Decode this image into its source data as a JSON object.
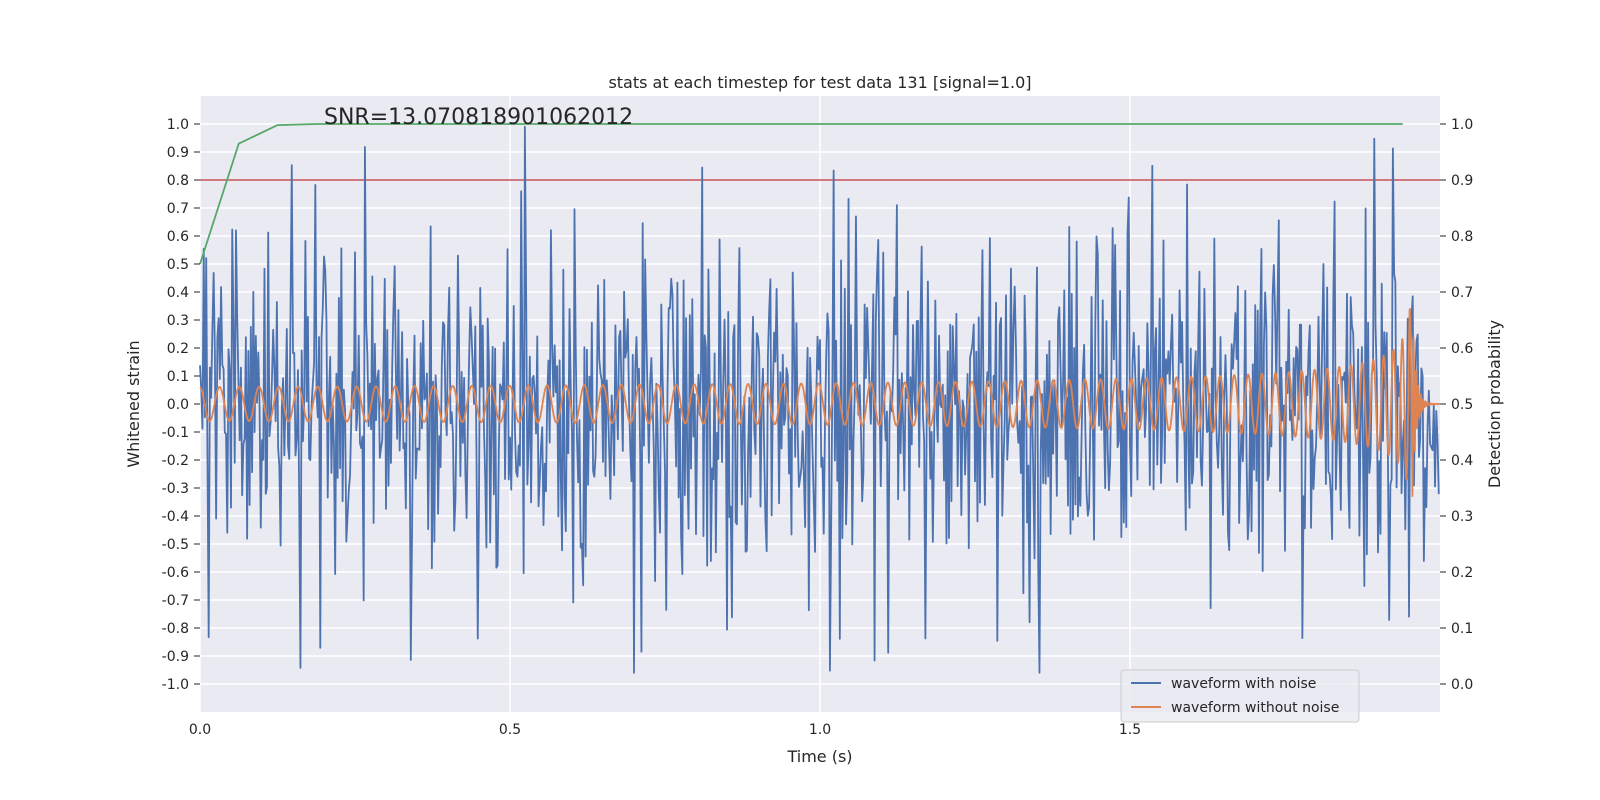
{
  "chart_data": {
    "type": "line",
    "title": "stats at each timestep for test data 131 [signal=1.0]",
    "xlabel": "Time (s)",
    "ylabel": "Whitened strain",
    "ylabel_right": "Detection probability",
    "annotation": "SNR=13.070818901062012",
    "xlim": [
      0.0,
      2.0
    ],
    "ylim": [
      -1.1,
      1.1
    ],
    "ylim_right": [
      -0.05,
      1.05
    ],
    "x_ticks": [
      {
        "value": 0.0,
        "label": "0.0"
      },
      {
        "value": 0.5,
        "label": "0.5"
      },
      {
        "value": 1.0,
        "label": "1.0"
      },
      {
        "value": 1.5,
        "label": "1.5"
      }
    ],
    "y_ticks": [
      {
        "value": 1.0,
        "label": "1.0"
      },
      {
        "value": 0.9,
        "label": "0.9"
      },
      {
        "value": 0.8,
        "label": "0.8"
      },
      {
        "value": 0.7,
        "label": "0.7"
      },
      {
        "value": 0.6,
        "label": "0.6"
      },
      {
        "value": 0.5,
        "label": "0.5"
      },
      {
        "value": 0.4,
        "label": "0.4"
      },
      {
        "value": 0.3,
        "label": "0.3"
      },
      {
        "value": 0.2,
        "label": "0.2"
      },
      {
        "value": 0.1,
        "label": "0.1"
      },
      {
        "value": 0.0,
        "label": "0.0"
      },
      {
        "value": -0.1,
        "label": "-0.1"
      },
      {
        "value": -0.2,
        "label": "-0.2"
      },
      {
        "value": -0.3,
        "label": "-0.3"
      },
      {
        "value": -0.4,
        "label": "-0.4"
      },
      {
        "value": -0.5,
        "label": "-0.5"
      },
      {
        "value": -0.6,
        "label": "-0.6"
      },
      {
        "value": -0.7,
        "label": "-0.7"
      },
      {
        "value": -0.8,
        "label": "-0.8"
      },
      {
        "value": -0.9,
        "label": "-0.9"
      },
      {
        "value": -1.0,
        "label": "-1.0"
      }
    ],
    "y_ticks_right": [
      {
        "value": 1.0,
        "label": "1.0"
      },
      {
        "value": 0.9,
        "label": "0.9"
      },
      {
        "value": 0.8,
        "label": "0.8"
      },
      {
        "value": 0.7,
        "label": "0.7"
      },
      {
        "value": 0.6,
        "label": "0.6"
      },
      {
        "value": 0.5,
        "label": "0.5"
      },
      {
        "value": 0.4,
        "label": "0.4"
      },
      {
        "value": 0.3,
        "label": "0.3"
      },
      {
        "value": 0.2,
        "label": "0.2"
      },
      {
        "value": 0.1,
        "label": "0.1"
      },
      {
        "value": 0.0,
        "label": "0.0"
      }
    ],
    "threshold": {
      "axis": "right",
      "value": 0.9,
      "color": "#c44e52"
    },
    "detection_probability": {
      "axis": "right",
      "color": "#55a868",
      "x": [
        0.0,
        0.0625,
        0.125,
        0.1875,
        0.25,
        0.5,
        1.0,
        1.5,
        1.94
      ],
      "y": [
        0.75,
        0.965,
        0.998,
        1.0,
        1.0,
        1.0,
        1.0,
        1.0,
        1.0
      ]
    },
    "series": [
      {
        "name": "waveform with noise",
        "color": "#4c72b0",
        "model": "random noise, std ~0.32, samples every 0.002 s, range approx -0.96 to 0.99"
      },
      {
        "name": "waveform without noise",
        "color": "#dd8452",
        "model": "chirp: amplitude 0.06 rising to ~0.35 near merger at t=1.955 s, frequency ~37 Hz rising, ringdown to 0 after t=1.96 s"
      }
    ],
    "legend": {
      "location": "lower right",
      "entries": [
        {
          "label": "waveform with noise",
          "color": "#4c72b0"
        },
        {
          "label": "waveform without noise",
          "color": "#dd8452"
        }
      ]
    }
  }
}
